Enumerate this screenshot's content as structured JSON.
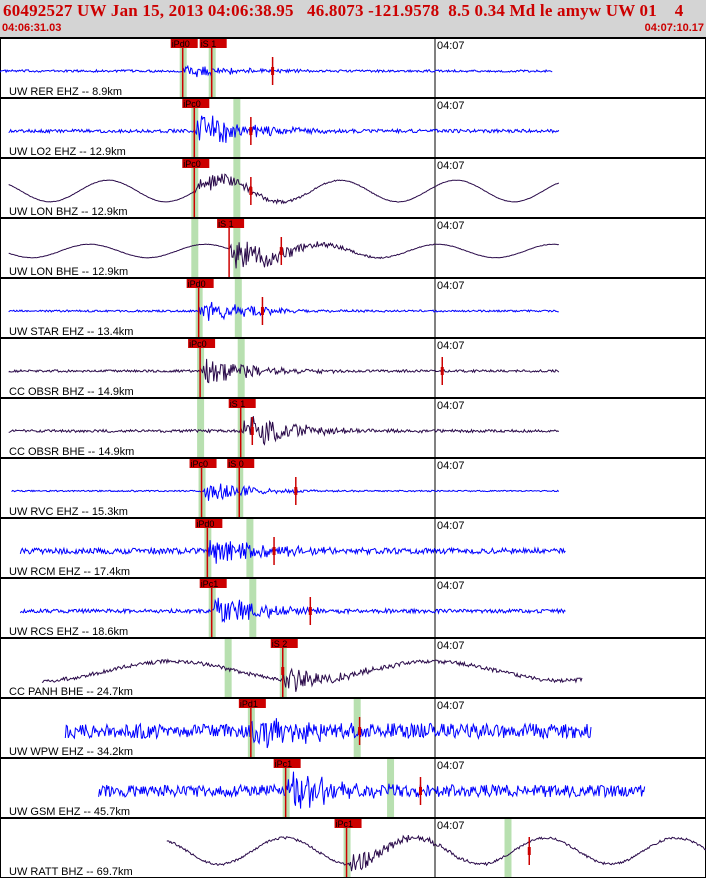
{
  "header": {
    "title": "60492527 UW Jan 15, 2013 04:06:38.95   46.8073 -121.9578  8.5 0.34 Md le amyw UW 01    4",
    "start_time": "04:06:31.03",
    "end_time": "04:07:10.17"
  },
  "colors": {
    "background": "#ffffff",
    "header_bg": "#d4d4d4",
    "header_text": "#cc0000",
    "vertical_trace": "#0000ff",
    "horizontal_trace": "#2a0a4a",
    "pick": "#cc0000",
    "pick_window": "#b8e0b0"
  },
  "chart_data": {
    "type": "line",
    "title": "60492527 UW Jan 15, 2013 04:06:38.95   46.8073 -121.9578  8.5 0.34 Md le amyw UW 01    4",
    "x_unit": "time",
    "xlim": [
      "04:06:31.03",
      "04:07:10.17"
    ],
    "minute_mark": "04:07",
    "series": [
      {
        "name": "UW RER EHZ -- 8.9km",
        "channel": "EHZ",
        "picks": [
          {
            "label": "iPd0",
            "time": 12.6
          },
          {
            "label": "iS 1",
            "time": 14.6
          }
        ],
        "data_start": 0.0,
        "data_end": 38.1,
        "window": [
          12.6,
          14.6
        ],
        "coda_end": 18.8,
        "amplitude": 0.35,
        "noise": 0.05,
        "wave": 0.0,
        "wave_period": 8
      },
      {
        "name": "UW LO2 EHZ -- 12.9km",
        "channel": "EHZ",
        "picks": [
          {
            "label": "iPc0",
            "time": 13.4
          }
        ],
        "data_start": 0.6,
        "data_end": 38.6,
        "window": [
          13.4,
          16.3
        ],
        "coda_end": 17.3,
        "amplitude": 0.9,
        "noise": 0.07,
        "wave": 0.0,
        "wave_period": 8
      },
      {
        "name": "UW LON BHZ -- 12.9km",
        "channel": "BHZ",
        "picks": [
          {
            "label": "iPc0",
            "time": 13.4
          }
        ],
        "data_start": 0.6,
        "data_end": 38.6,
        "window": [
          13.4,
          16.3
        ],
        "coda_end": 17.3,
        "amplitude": 0.5,
        "noise": 0.01,
        "wave": 0.45,
        "wave_period": 8
      },
      {
        "name": "UW LON BHE -- 12.9km",
        "channel": "BHE",
        "picks": [
          {
            "label": "iS 1",
            "time": 15.8
          }
        ],
        "data_start": 0.6,
        "data_end": 38.6,
        "window": [
          13.4,
          16.3
        ],
        "coda_end": 19.4,
        "amplitude": 0.85,
        "noise": 0.01,
        "wave": 0.28,
        "wave_period": 8
      },
      {
        "name": "UW STAR EHZ -- 13.4km",
        "channel": "EHZ",
        "picks": [
          {
            "label": "iPd0",
            "time": 13.7
          }
        ],
        "data_start": 0.6,
        "data_end": 38.6,
        "window": [
          13.7,
          16.4
        ],
        "coda_end": 18.1,
        "amplitude": 0.6,
        "noise": 0.04,
        "wave": 0.0,
        "wave_period": 8
      },
      {
        "name": "CC OBSR BHZ -- 14.9km",
        "channel": "BHZ",
        "picks": [
          {
            "label": "iPc0",
            "time": 13.8
          }
        ],
        "data_start": 0.6,
        "data_end": 38.6,
        "window": [
          13.8,
          16.6
        ],
        "coda_end": 30.5,
        "amplitude": 0.7,
        "noise": 0.05,
        "wave": 0.0,
        "wave_period": 8
      },
      {
        "name": "CC OBSR BHE -- 14.9km",
        "channel": "BHE",
        "picks": [
          {
            "label": "iS 1",
            "time": 16.6
          }
        ],
        "data_start": 0.6,
        "data_end": 38.6,
        "window": [
          13.8,
          16.6
        ],
        "coda_end": 17.4,
        "amplitude": 0.9,
        "noise": 0.06,
        "wave": 0.0,
        "wave_period": 8
      },
      {
        "name": "UW RVC EHZ -- 15.3km",
        "channel": "EHZ",
        "picks": [
          {
            "label": "iPc0",
            "time": 13.9
          },
          {
            "label": "iS 0",
            "time": 16.5
          }
        ],
        "data_start": 0.8,
        "data_end": 38.6,
        "window": [
          13.9,
          16.5
        ],
        "coda_end": 20.4,
        "amplitude": 0.5,
        "noise": 0.03,
        "wave": 0.0,
        "wave_period": 8
      },
      {
        "name": "UW RCM EHZ -- 17.4km",
        "channel": "EHZ",
        "picks": [
          {
            "label": "iPd0",
            "time": 14.3
          }
        ],
        "data_start": 1.4,
        "data_end": 39.0,
        "window": [
          14.3,
          17.2
        ],
        "coda_end": 18.9,
        "amplitude": 0.8,
        "noise": 0.12,
        "wave": 0.0,
        "wave_period": 8
      },
      {
        "name": "UW RCS EHZ -- 18.6km",
        "channel": "EHZ",
        "picks": [
          {
            "label": "iPc1",
            "time": 14.6
          }
        ],
        "data_start": 1.4,
        "data_end": 39.0,
        "window": [
          14.6,
          17.4
        ],
        "coda_end": 21.4,
        "amplitude": 0.85,
        "noise": 0.08,
        "wave": 0.0,
        "wave_period": 8
      },
      {
        "name": "CC PANH BHE -- 24.7km",
        "channel": "BHE",
        "picks": [
          {
            "label": "iS 2",
            "time": 19.5
          }
        ],
        "data_start": 2.9,
        "data_end": 40.2,
        "window": [
          15.7,
          19.5
        ],
        "coda_end": 19.5,
        "amplitude": 0.6,
        "noise": 0.08,
        "wave": 0.4,
        "wave_period": 18
      },
      {
        "name": "UW WPW EHZ -- 34.2km",
        "channel": "EHZ",
        "picks": [
          {
            "label": "iPd1",
            "time": 17.3
          }
        ],
        "data_start": 4.5,
        "data_end": 40.8,
        "window": [
          17.3,
          24.6
        ],
        "coda_end": 24.8,
        "amplitude": 0.95,
        "noise": 0.3,
        "wave": 0.0,
        "wave_period": 8
      },
      {
        "name": "UW GSM EHZ -- 45.7km",
        "channel": "EHZ",
        "picks": [
          {
            "label": "iPc1",
            "time": 19.7
          }
        ],
        "data_start": 6.8,
        "data_end": 44.5,
        "window": [
          19.7,
          26.9
        ],
        "coda_end": 29.0,
        "amplitude": 0.95,
        "noise": 0.25,
        "wave": 0.0,
        "wave_period": 8
      },
      {
        "name": "UW RATT BHZ -- 69.7km",
        "channel": "BHZ",
        "picks": [
          {
            "label": "iPc1",
            "time": 23.9
          }
        ],
        "data_start": 11.5,
        "data_end": 49.0,
        "window": [
          23.9,
          35.0
        ],
        "coda_end": 36.5,
        "amplitude": 0.5,
        "noise": 0.05,
        "wave": 0.55,
        "wave_period": 9
      }
    ]
  }
}
